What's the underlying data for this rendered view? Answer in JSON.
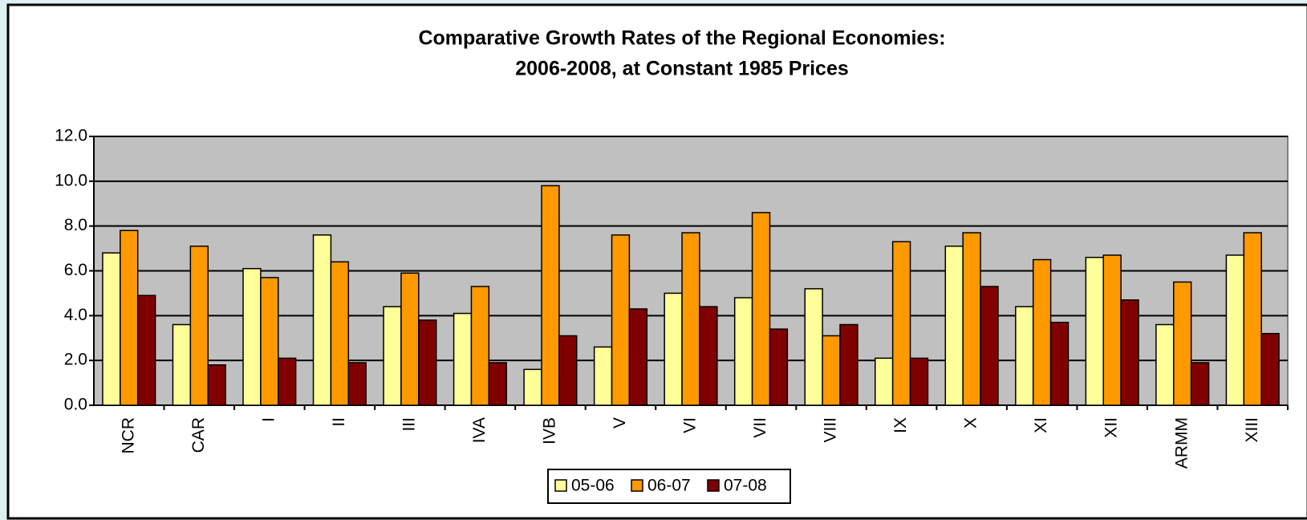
{
  "chart_data": {
    "type": "bar",
    "title": "Comparative Growth Rates of the Regional Economies:",
    "subtitle": "2006-2008, at Constant 1985 Prices",
    "categories": [
      "NCR",
      "CAR",
      "I",
      "II",
      "III",
      "IVA",
      "IVB",
      "V",
      "VI",
      "VII",
      "VIII",
      "IX",
      "X",
      "XI",
      "XII",
      "ARMM",
      "XIII"
    ],
    "series": [
      {
        "name": "05-06",
        "color": "#ffff99",
        "values": [
          6.8,
          3.6,
          6.1,
          7.6,
          4.4,
          4.1,
          1.6,
          2.6,
          5.0,
          4.8,
          5.2,
          2.1,
          7.1,
          4.4,
          6.6,
          3.6,
          6.7
        ]
      },
      {
        "name": "06-07",
        "color": "#ff9900",
        "values": [
          7.8,
          7.1,
          5.7,
          6.4,
          5.9,
          5.3,
          9.8,
          7.6,
          7.7,
          8.6,
          3.1,
          7.3,
          7.7,
          6.5,
          6.7,
          5.5,
          7.7
        ]
      },
      {
        "name": "07-08",
        "color": "#800000",
        "values": [
          4.9,
          1.8,
          2.1,
          1.9,
          3.8,
          1.9,
          3.1,
          4.3,
          4.4,
          3.4,
          3.6,
          2.1,
          5.3,
          3.7,
          4.7,
          1.9,
          3.2
        ]
      }
    ],
    "ylim": [
      0,
      12
    ],
    "yticks": [
      {
        "value": 0,
        "label": "0.0"
      },
      {
        "value": 2,
        "label": "2.0"
      },
      {
        "value": 4,
        "label": "4.0"
      },
      {
        "value": 6,
        "label": "6.0"
      },
      {
        "value": 8,
        "label": "8.0"
      },
      {
        "value": 10,
        "label": "10.0"
      },
      {
        "value": 12,
        "label": "12.0"
      }
    ],
    "grid": true,
    "plot_background": "#c0c0c0",
    "legend": "bottom"
  }
}
